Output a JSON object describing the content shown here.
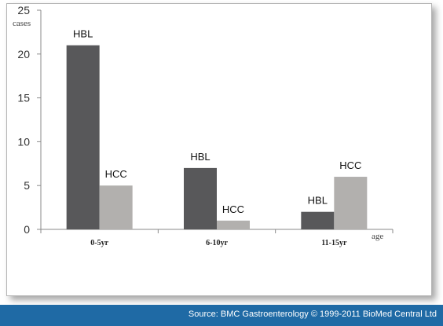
{
  "chart_data": {
    "type": "bar",
    "categories": [
      "0-5yr",
      "6-10yr",
      "11-15yr"
    ],
    "series": [
      {
        "name": "HBL",
        "values": [
          21,
          7,
          2
        ],
        "color": "#58585a"
      },
      {
        "name": "HCC",
        "values": [
          5,
          1,
          6
        ],
        "color": "#b2b0ae"
      }
    ],
    "ylim": [
      0,
      25
    ],
    "yticks": [
      0,
      5,
      10,
      15,
      20,
      25
    ],
    "ylabel": "cases",
    "xlabel": "age",
    "grid": false,
    "bar_labels": true
  },
  "footer": {
    "source_text": "Source: BMC Gastroenterology © 1999-2011 BioMed Central Ltd",
    "background_color": "#1f6aa5"
  }
}
